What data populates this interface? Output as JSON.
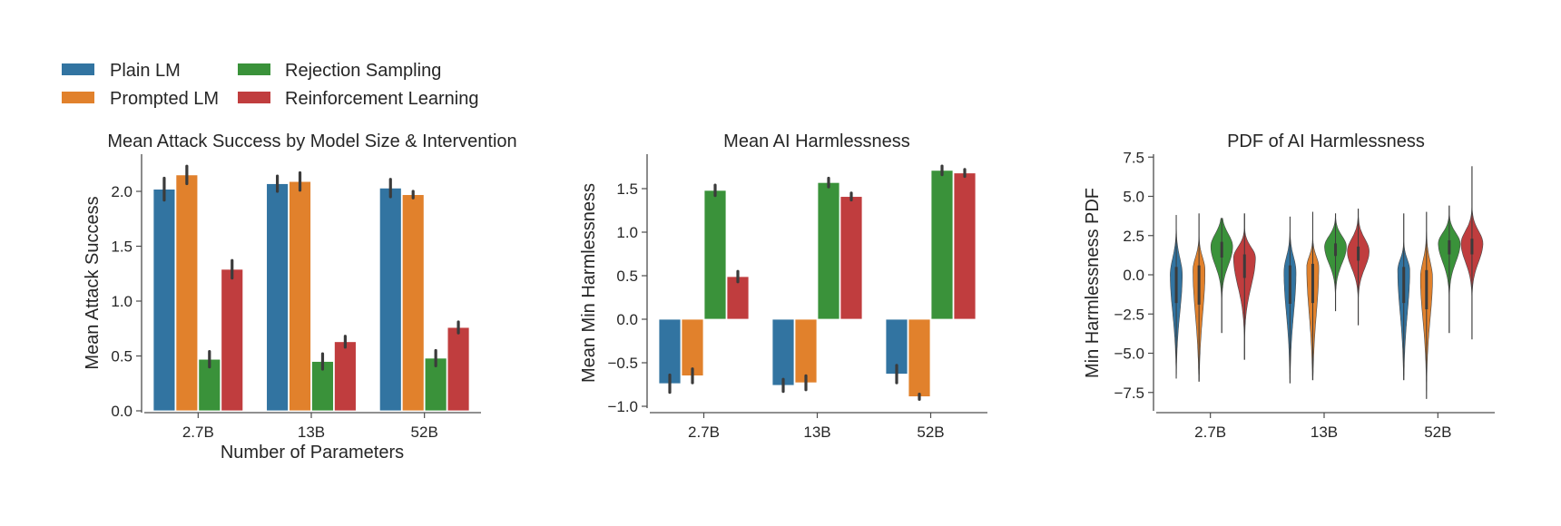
{
  "legend": {
    "entries": [
      {
        "label": "Plain LM",
        "color": "#3274a1"
      },
      {
        "label": "Prompted LM",
        "color": "#e1812c"
      },
      {
        "label": "Rejection Sampling",
        "color": "#3a923a"
      },
      {
        "label": "Reinforcement Learning",
        "color": "#c03d3e"
      }
    ]
  },
  "chart_data": [
    {
      "type": "bar",
      "title": "Mean Attack Success by Model Size & Intervention",
      "xlabel": "Number of Parameters",
      "ylabel": "Mean Attack Success",
      "categories": [
        "2.7B",
        "13B",
        "52B"
      ],
      "ylim": [
        0,
        2.3
      ],
      "yticks": [
        0.0,
        0.5,
        1.0,
        1.5,
        2.0
      ],
      "ytick_labels": [
        "0.0",
        "0.5",
        "1.0",
        "1.5",
        "2.0"
      ],
      "series": [
        {
          "name": "Plain LM",
          "values": [
            2.02,
            2.07,
            2.03
          ],
          "err": [
            0.1,
            0.07,
            0.08
          ]
        },
        {
          "name": "Prompted LM",
          "values": [
            2.15,
            2.09,
            1.97
          ],
          "err": [
            0.08,
            0.08,
            0.03
          ]
        },
        {
          "name": "Rejection Sampling",
          "values": [
            0.47,
            0.45,
            0.48
          ],
          "err": [
            0.07,
            0.07,
            0.07
          ]
        },
        {
          "name": "Reinforcement Learning",
          "values": [
            1.29,
            0.63,
            0.76
          ],
          "err": [
            0.08,
            0.05,
            0.05
          ]
        }
      ]
    },
    {
      "type": "bar",
      "title": "Mean AI Harmlessness",
      "xlabel": "",
      "ylabel": "Mean Min Harmlessness",
      "categories": [
        "2.7B",
        "13B",
        "52B"
      ],
      "ylim": [
        -1.07,
        1.88
      ],
      "yticks": [
        -1.0,
        -0.5,
        0.0,
        0.5,
        1.0,
        1.5
      ],
      "ytick_labels": [
        "−1.0",
        "−0.5",
        "0.0",
        "0.5",
        "1.0",
        "1.5"
      ],
      "series": [
        {
          "name": "Plain LM",
          "values": [
            -0.74,
            -0.76,
            -0.63
          ],
          "err": [
            0.1,
            0.07,
            0.1
          ]
        },
        {
          "name": "Prompted LM",
          "values": [
            -0.65,
            -0.73,
            -0.89
          ],
          "err": [
            0.08,
            0.08,
            0.03
          ]
        },
        {
          "name": "Rejection Sampling",
          "values": [
            1.48,
            1.57,
            1.71
          ],
          "err": [
            0.06,
            0.05,
            0.05
          ]
        },
        {
          "name": "Reinforcement Learning",
          "values": [
            0.49,
            1.41,
            1.68
          ],
          "err": [
            0.06,
            0.04,
            0.04
          ]
        }
      ]
    },
    {
      "type": "violin",
      "title": "PDF of AI Harmlessness",
      "xlabel": "",
      "ylabel": "Min Harmlessness PDF",
      "categories": [
        "2.7B",
        "13B",
        "52B"
      ],
      "ylim": [
        -8.9,
        7.8
      ],
      "yticks": [
        -7.5,
        -5.0,
        -2.5,
        0.0,
        2.5,
        5.0,
        7.5
      ],
      "ytick_labels": [
        "−7.5",
        "−5.0",
        "−2.5",
        "0.0",
        "2.5",
        "5.0",
        "7.5"
      ],
      "series": [
        {
          "name": "Plain LM",
          "distributions": [
            {
              "min": -6.6,
              "q1": -1.8,
              "median": -0.6,
              "q3": 0.5,
              "max": 3.8,
              "mode": 0.0
            },
            {
              "min": -6.9,
              "q1": -1.85,
              "median": -0.6,
              "q3": 0.6,
              "max": 3.7,
              "mode": 0.2
            },
            {
              "min": -6.7,
              "q1": -1.8,
              "median": -0.5,
              "q3": 0.5,
              "max": 3.9,
              "mode": 0.3
            }
          ]
        },
        {
          "name": "Prompted LM",
          "distributions": [
            {
              "min": -6.8,
              "q1": -1.9,
              "median": -0.6,
              "q3": 0.6,
              "max": 3.9,
              "mode": 0.3
            },
            {
              "min": -6.7,
              "q1": -1.8,
              "median": -0.5,
              "q3": 0.7,
              "max": 4.0,
              "mode": 0.5
            },
            {
              "min": -7.9,
              "q1": -2.2,
              "median": -0.9,
              "q3": 0.3,
              "max": 4.0,
              "mode": -0.2
            }
          ]
        },
        {
          "name": "Rejection Sampling",
          "distributions": [
            {
              "min": -3.7,
              "q1": 1.1,
              "median": 1.7,
              "q3": 2.1,
              "max": 3.6,
              "mode": 1.8
            },
            {
              "min": -2.3,
              "q1": 1.2,
              "median": 1.7,
              "q3": 2.0,
              "max": 3.9,
              "mode": 1.8
            },
            {
              "min": -3.7,
              "q1": 1.3,
              "median": 1.8,
              "q3": 2.2,
              "max": 4.4,
              "mode": 2.0
            }
          ]
        },
        {
          "name": "Reinforcement Learning",
          "distributions": [
            {
              "min": -5.4,
              "q1": -0.2,
              "median": 0.8,
              "q3": 1.3,
              "max": 3.9,
              "mode": 1.1
            },
            {
              "min": -3.2,
              "q1": 0.9,
              "median": 1.4,
              "q3": 1.8,
              "max": 4.2,
              "mode": 1.5
            },
            {
              "min": -4.1,
              "q1": 1.3,
              "median": 1.9,
              "q3": 2.3,
              "max": 6.9,
              "mode": 2.0
            }
          ]
        }
      ]
    }
  ]
}
